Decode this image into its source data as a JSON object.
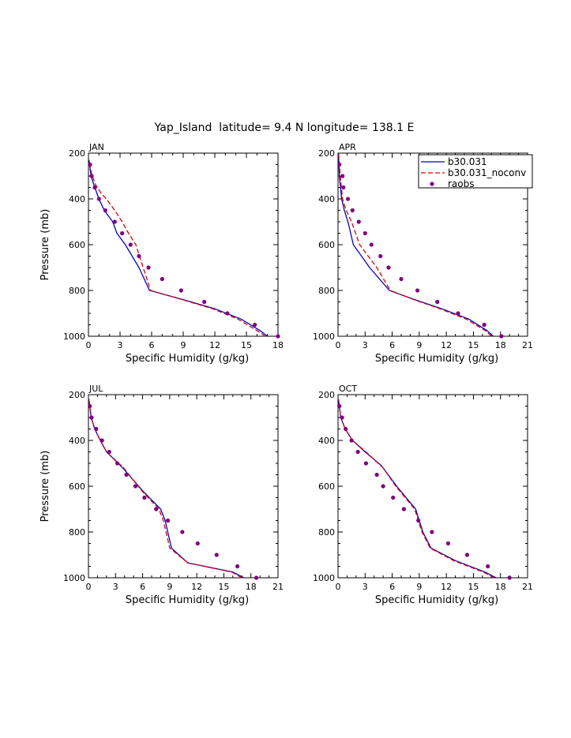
{
  "figure": {
    "title": "Yap_Island  latitude= 9.4 N longitude= 138.1 E"
  },
  "legend": {
    "items": [
      {
        "label": "b30.031",
        "style": "solid",
        "color": "#0000cc"
      },
      {
        "label": "b30.031_noconv",
        "style": "dashed",
        "color": "#e00000"
      },
      {
        "label": "raobs",
        "style": "dot",
        "color": "#800080"
      }
    ]
  },
  "colors": {
    "b30": "#0000cc",
    "noconv": "#e00000",
    "raobs": "#800080"
  },
  "chart_data": [
    {
      "type": "line",
      "panel": "JAN",
      "xlabel": "Specific Humidity (g/kg)",
      "ylabel": "Pressure (mb)",
      "xlim": [
        0,
        18
      ],
      "xticks": [
        0,
        3,
        6,
        9,
        12,
        15,
        18
      ],
      "ylim": [
        1000,
        200
      ],
      "yticks": [
        200,
        400,
        600,
        800,
        1000
      ],
      "series": [
        {
          "name": "b30.031",
          "x": [
            17.0,
            16.3,
            14.5,
            12.0,
            9.0,
            5.8,
            4.8,
            3.5,
            2.7,
            2.3,
            1.5,
            1.0,
            0.6,
            0.25,
            0.05
          ],
          "y": [
            1000,
            975,
            925,
            880,
            840,
            800,
            700,
            600,
            550,
            500,
            450,
            400,
            350,
            300,
            230
          ]
        },
        {
          "name": "b30.031_noconv",
          "x": [
            16.8,
            16.0,
            14.2,
            11.8,
            8.9,
            5.9,
            5.2,
            4.5,
            3.8,
            3.2,
            2.5,
            1.7,
            1.2,
            0.7,
            0.3,
            0.05
          ],
          "y": [
            1000,
            975,
            925,
            880,
            840,
            800,
            700,
            600,
            550,
            500,
            450,
            400,
            375,
            340,
            290,
            230
          ]
        },
        {
          "name": "raobs",
          "x": [
            18.0,
            15.8,
            13.2,
            11.0,
            8.8,
            7.0,
            5.7,
            4.8,
            4.0,
            3.2,
            2.5,
            1.6,
            1.0,
            0.6,
            0.3,
            0.15
          ],
          "y": [
            1000,
            950,
            900,
            850,
            800,
            750,
            700,
            650,
            600,
            550,
            500,
            450,
            400,
            350,
            300,
            250
          ]
        }
      ]
    },
    {
      "type": "line",
      "panel": "APR",
      "xlabel": "Specific Humidity (g/kg)",
      "ylabel": "",
      "xlim": [
        0,
        21
      ],
      "xticks": [
        0,
        3,
        6,
        9,
        12,
        15,
        18,
        21
      ],
      "ylim": [
        1000,
        200
      ],
      "yticks": [
        200,
        400,
        600,
        800,
        1000
      ],
      "series": [
        {
          "name": "b30.031",
          "x": [
            17.2,
            16.5,
            14.5,
            11.5,
            8.5,
            5.7,
            3.5,
            1.7,
            1.1,
            0.7,
            0.4,
            0.15,
            0.05
          ],
          "y": [
            1000,
            975,
            925,
            880,
            840,
            800,
            700,
            600,
            500,
            450,
            400,
            300,
            200
          ]
        },
        {
          "name": "b30.031_noconv",
          "x": [
            17.0,
            16.3,
            14.2,
            11.3,
            8.4,
            5.8,
            4.3,
            2.4,
            1.5,
            0.9,
            0.5,
            0.25,
            0.05
          ],
          "y": [
            1000,
            975,
            925,
            880,
            840,
            800,
            700,
            600,
            500,
            450,
            400,
            300,
            200
          ]
        },
        {
          "name": "raobs",
          "x": [
            18.1,
            16.2,
            13.3,
            11.0,
            8.8,
            7.0,
            5.6,
            4.7,
            3.7,
            3.0,
            2.3,
            1.6,
            1.1,
            0.6,
            0.5,
            0.15
          ],
          "y": [
            1000,
            950,
            900,
            850,
            800,
            750,
            700,
            650,
            600,
            550,
            500,
            450,
            400,
            350,
            300,
            250
          ]
        }
      ]
    },
    {
      "type": "line",
      "panel": "JUL",
      "xlabel": "Specific Humidity (g/kg)",
      "ylabel": "Pressure (mb)",
      "xlim": [
        0,
        21
      ],
      "xticks": [
        0,
        3,
        6,
        9,
        12,
        15,
        18,
        21
      ],
      "ylim": [
        1000,
        200
      ],
      "yticks": [
        200,
        400,
        600,
        800,
        1000
      ],
      "series": [
        {
          "name": "b30.031",
          "x": [
            17.2,
            16.0,
            11.0,
            9.2,
            8.5,
            8.0,
            6.0,
            3.8,
            2.0,
            1.3,
            0.7,
            0.3,
            0.05
          ],
          "y": [
            1000,
            975,
            935,
            870,
            750,
            700,
            620,
            520,
            450,
            400,
            350,
            300,
            220
          ]
        },
        {
          "name": "b30.031_noconv",
          "x": [
            17.0,
            15.9,
            11.0,
            9.0,
            8.3,
            7.8,
            5.8,
            3.9,
            2.0,
            1.3,
            0.7,
            0.3,
            0.05
          ],
          "y": [
            1000,
            975,
            935,
            870,
            750,
            700,
            615,
            520,
            450,
            400,
            350,
            300,
            220
          ]
        },
        {
          "name": "raobs",
          "x": [
            18.6,
            16.5,
            14.2,
            12.1,
            10.4,
            8.8,
            7.5,
            6.2,
            5.2,
            4.2,
            3.2,
            2.3,
            1.5,
            0.85,
            0.35,
            0.15
          ],
          "y": [
            1000,
            950,
            900,
            850,
            800,
            750,
            700,
            650,
            600,
            550,
            500,
            450,
            400,
            350,
            300,
            250
          ]
        }
      ]
    },
    {
      "type": "line",
      "panel": "OCT",
      "xlabel": "Specific Humidity (g/kg)",
      "ylabel": "",
      "xlim": [
        0,
        21
      ],
      "xticks": [
        0,
        3,
        6,
        9,
        12,
        15,
        18,
        21
      ],
      "ylim": [
        1000,
        200
      ],
      "yticks": [
        200,
        400,
        600,
        800,
        1000
      ],
      "series": [
        {
          "name": "b30.031",
          "x": [
            17.5,
            16.3,
            13.0,
            10.3,
            9.4,
            8.6,
            6.5,
            4.8,
            3.0,
            1.6,
            0.8,
            0.3,
            0.05
          ],
          "y": [
            1000,
            975,
            925,
            870,
            800,
            700,
            600,
            510,
            450,
            400,
            350,
            300,
            220
          ]
        },
        {
          "name": "b30.031_noconv",
          "x": [
            17.3,
            16.1,
            12.8,
            10.2,
            9.3,
            8.5,
            6.4,
            5.0,
            3.1,
            1.6,
            0.8,
            0.3,
            0.05
          ],
          "y": [
            1000,
            975,
            925,
            870,
            800,
            700,
            600,
            520,
            450,
            400,
            350,
            300,
            220
          ]
        },
        {
          "name": "raobs",
          "x": [
            19.0,
            16.6,
            14.3,
            12.2,
            10.4,
            8.9,
            7.3,
            6.1,
            5.0,
            4.3,
            3.1,
            2.2,
            1.5,
            0.85,
            0.45,
            0.15
          ],
          "y": [
            1000,
            950,
            900,
            850,
            800,
            750,
            700,
            650,
            600,
            550,
            500,
            450,
            400,
            350,
            300,
            250
          ]
        }
      ]
    }
  ]
}
